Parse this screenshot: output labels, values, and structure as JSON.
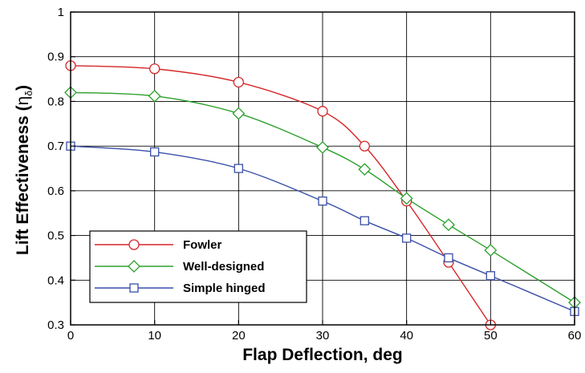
{
  "chart_data": {
    "type": "line",
    "xlabel": "Flap Deflection, deg",
    "ylabel": "Lift Effectiveness (",
    "ylabel_symbol": "η",
    "ylabel_subscript": "δ",
    "ylabel_close": ")",
    "xlim": [
      0,
      60
    ],
    "ylim": [
      0.3,
      1.0
    ],
    "x_ticks": [
      0,
      10,
      20,
      30,
      40,
      50,
      60
    ],
    "y_ticks": [
      0.3,
      0.4,
      0.5,
      0.6,
      0.7,
      0.8,
      0.9,
      1.0
    ],
    "y_tick_labels": [
      "0.3",
      "0.4",
      "0.5",
      "0.6",
      "0.7",
      "0.8",
      "0.9",
      "1"
    ],
    "grid": true,
    "legend_position": "lower-left",
    "series": [
      {
        "name": "Fowler",
        "color": "#d62728",
        "marker": "circle",
        "x": [
          0,
          10,
          20,
          30,
          35,
          40,
          45,
          50
        ],
        "y": [
          0.88,
          0.873,
          0.843,
          0.778,
          0.7,
          0.577,
          0.44,
          0.3
        ]
      },
      {
        "name": "Well-designed",
        "color": "#2ca02c",
        "marker": "diamond",
        "x": [
          0,
          10,
          20,
          30,
          35,
          40,
          45,
          50,
          60
        ],
        "y": [
          0.82,
          0.812,
          0.773,
          0.697,
          0.648,
          0.583,
          0.524,
          0.467,
          0.35
        ]
      },
      {
        "name": "Simple hinged",
        "color": "#3a4fa8",
        "marker": "square",
        "x": [
          0,
          10,
          20,
          30,
          35,
          40,
          45,
          50,
          60
        ],
        "y": [
          0.7,
          0.687,
          0.65,
          0.577,
          0.533,
          0.494,
          0.45,
          0.41,
          0.33
        ]
      }
    ]
  }
}
